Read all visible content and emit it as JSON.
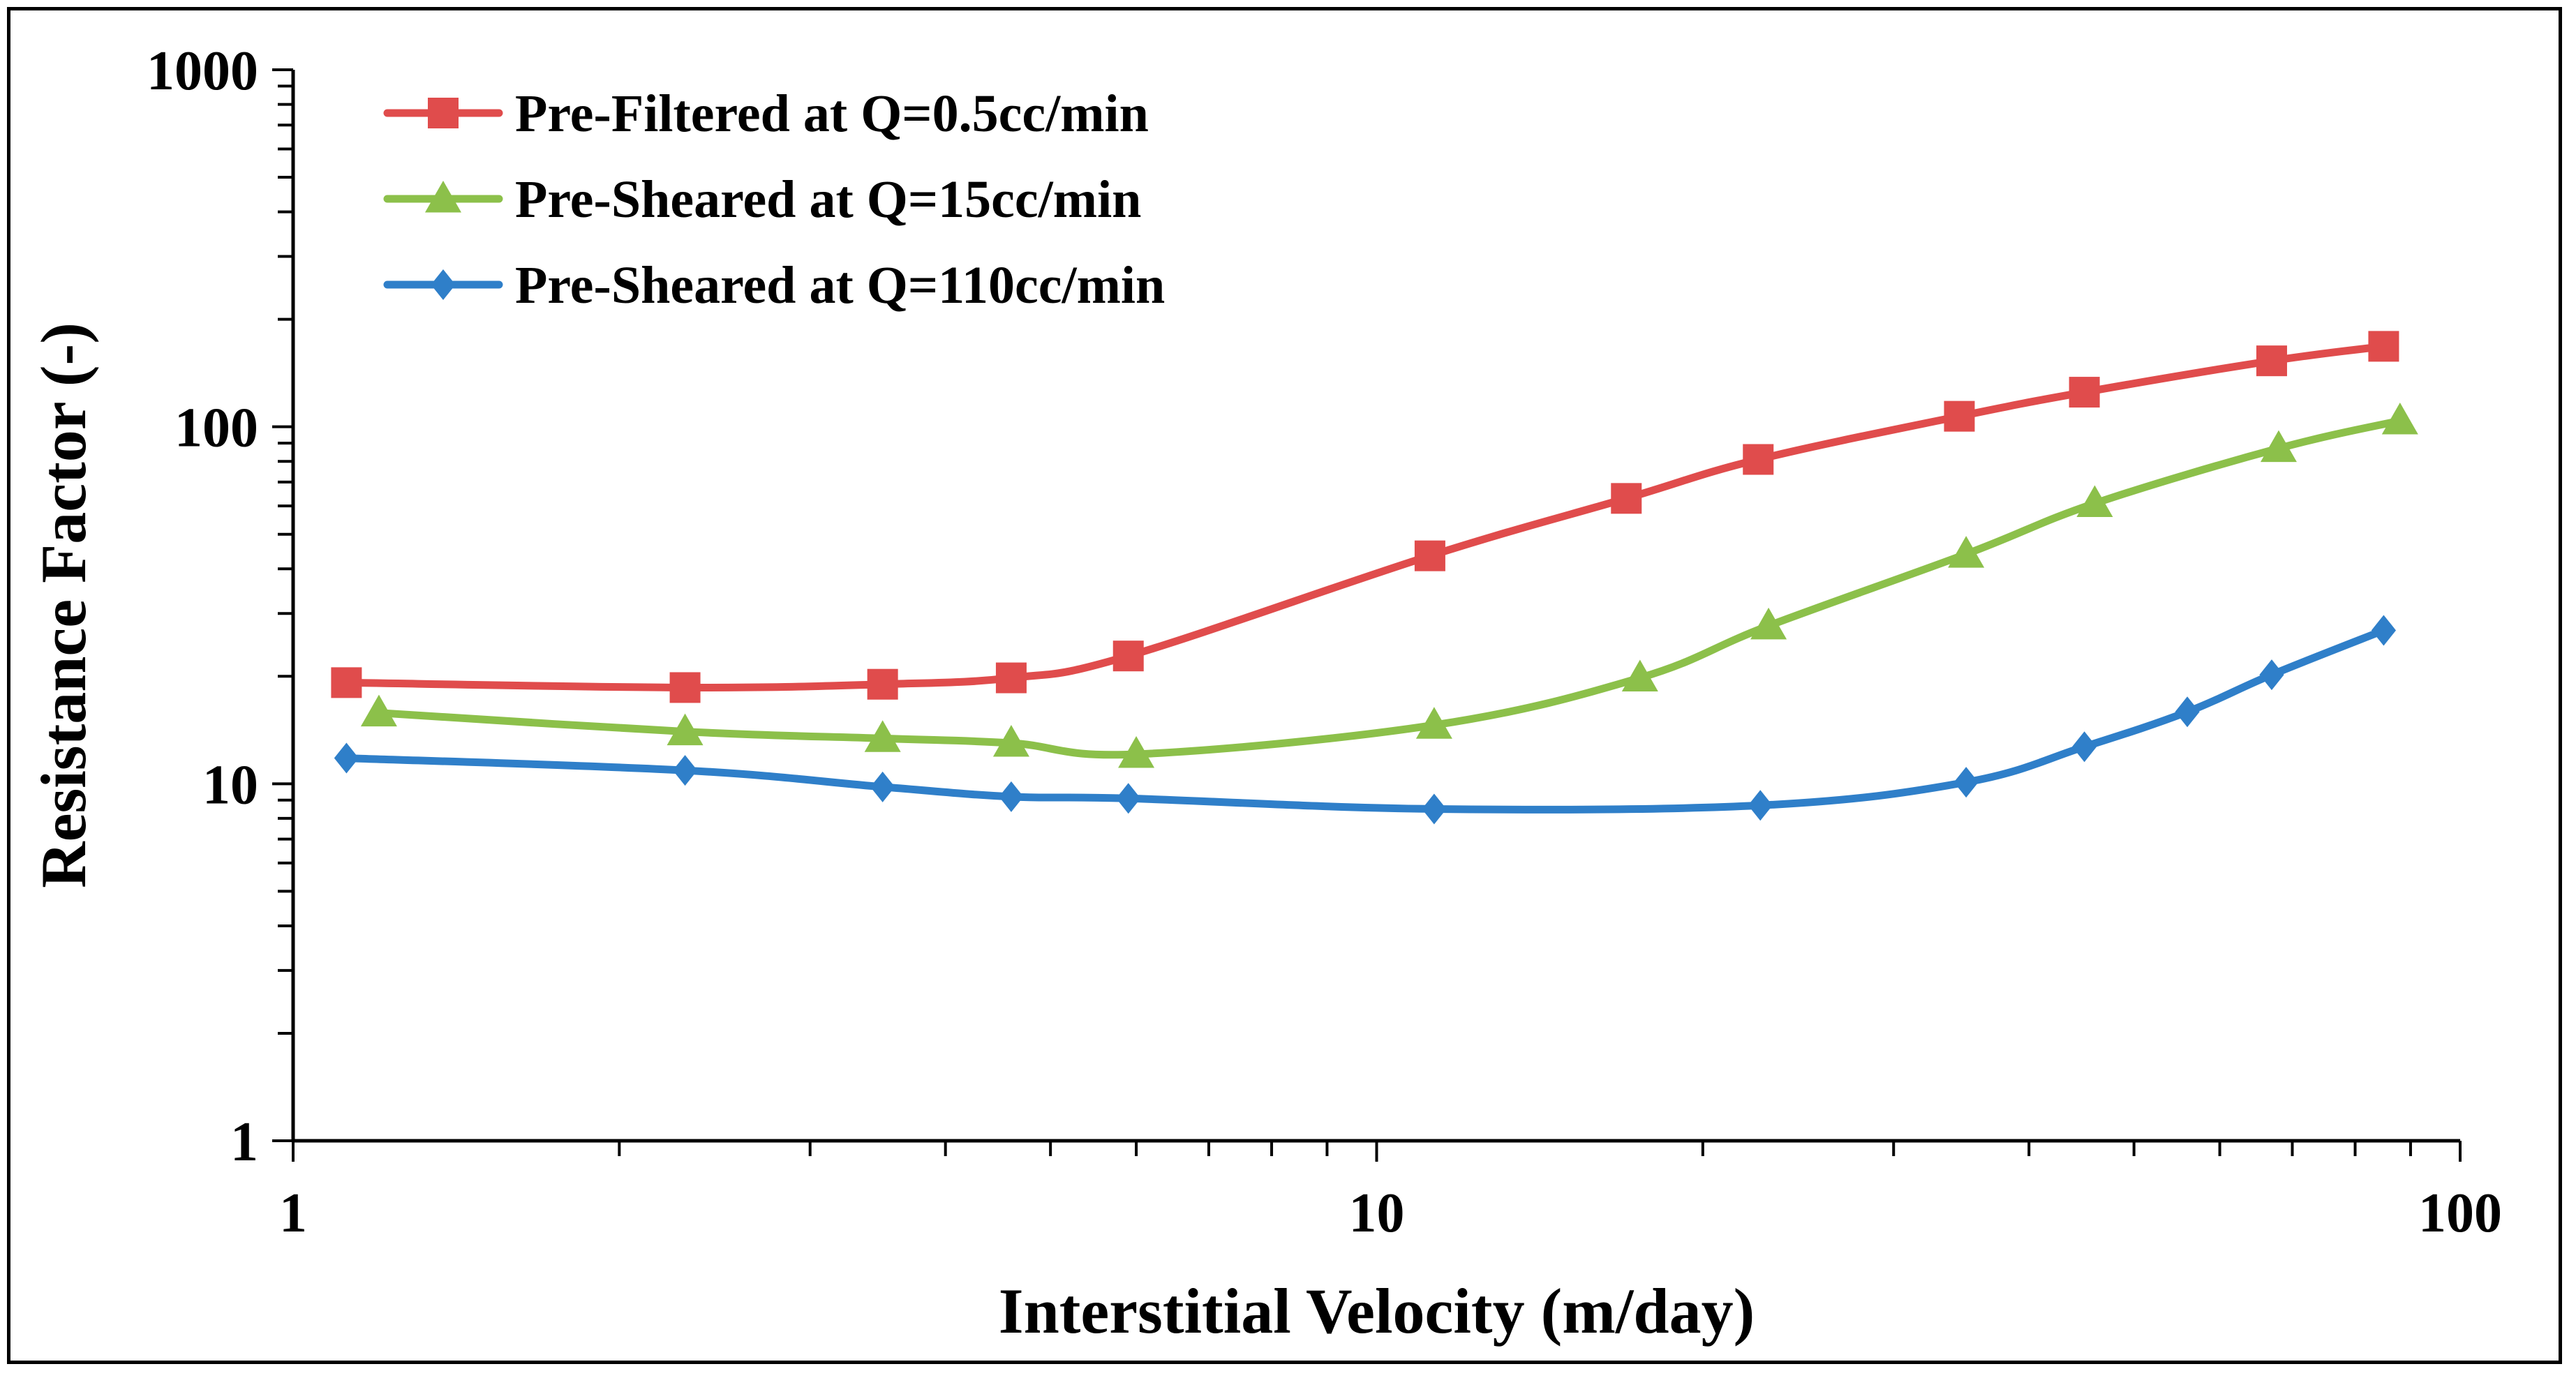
{
  "chart_data": {
    "type": "line",
    "x_scale": "log",
    "y_scale": "log",
    "xlabel": "Interstitial Velocity (m/day)",
    "ylabel": "Resistance Factor (-)",
    "xlim": [
      1,
      100
    ],
    "ylim": [
      1,
      1000
    ],
    "x_ticks": [
      "1",
      "10",
      "100"
    ],
    "y_ticks": [
      "1",
      "10",
      "100",
      "1000"
    ],
    "legend_position": "top-left",
    "series": [
      {
        "name": "Pre-Filtered at Q=0.5cc/min",
        "color": "#e04c4c",
        "marker": "square",
        "x": [
          1.12,
          2.3,
          3.5,
          4.6,
          5.9,
          11.2,
          17.0,
          22.5,
          34.5,
          45.0,
          67.0,
          85.0
        ],
        "y": [
          19.2,
          18.6,
          19.0,
          19.8,
          22.8,
          43.5,
          63.0,
          81.0,
          107.0,
          125.0,
          153.0,
          168.0
        ]
      },
      {
        "name": "Pre-Sheared at Q=15cc/min",
        "color": "#8cc04a",
        "marker": "triangle",
        "x": [
          1.2,
          2.3,
          3.5,
          4.6,
          6.0,
          11.3,
          17.5,
          23.0,
          35.0,
          46.0,
          68.0,
          88.0
        ],
        "y": [
          15.8,
          14.0,
          13.4,
          13.0,
          12.1,
          14.6,
          19.8,
          27.7,
          44.0,
          61.0,
          87.0,
          104.0
        ]
      },
      {
        "name": "Pre-Sheared at Q=110cc/min",
        "color": "#2f7fc9",
        "marker": "diamond",
        "x": [
          1.12,
          2.3,
          3.5,
          4.6,
          5.9,
          11.3,
          22.6,
          35.0,
          45.0,
          56.0,
          67.0,
          85.0
        ],
        "y": [
          11.8,
          10.9,
          9.8,
          9.2,
          9.1,
          8.5,
          8.7,
          10.1,
          12.7,
          15.9,
          20.2,
          26.9
        ]
      }
    ]
  }
}
